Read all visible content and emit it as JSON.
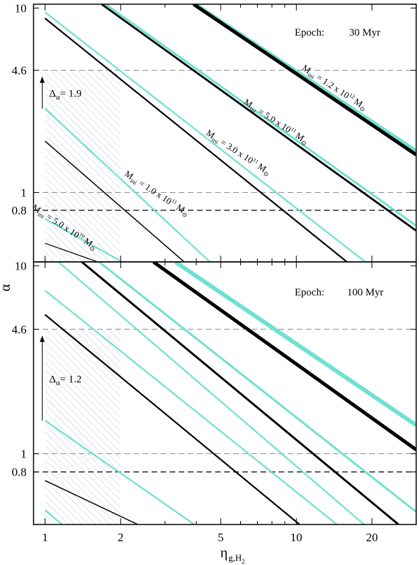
{
  "chart_data": {
    "type": "line",
    "xlabel": "η",
    "xlabel_sub": "g,H",
    "xlabel_sub2": "2",
    "ylabel": "α",
    "x_scale": "log",
    "y_scale": "log",
    "xlim": [
      0.9,
      30
    ],
    "x_ticks": [
      1,
      2,
      5,
      10,
      20
    ],
    "x_tick_labels": [
      "1",
      "2",
      "5",
      "10",
      "20"
    ],
    "x_minor_ticks": [
      0.9,
      3,
      4,
      6,
      7,
      8,
      9,
      30
    ],
    "colors": {
      "black": "#000000",
      "cyan": "#70e0d0",
      "hatch": "#b8c4d8",
      "dash_light": "#8a8a8a"
    },
    "panels": [
      {
        "name": "top",
        "epoch_label": "Epoch:",
        "epoch_value": "30 Myr",
        "ylim": [
          0.42,
          10.5
        ],
        "y_ticks": [
          0.8,
          1,
          4.6,
          10
        ],
        "y_tick_labels": [
          "0.8",
          "1",
          "4.6",
          "10"
        ],
        "hlines": [
          {
            "y": 4.6,
            "style": "light"
          },
          {
            "y": 1,
            "style": "light"
          },
          {
            "y": 0.8,
            "style": "dark"
          }
        ],
        "hatch": {
          "x": [
            1,
            2
          ],
          "y": [
            0.42,
            4.6
          ]
        },
        "delta": {
          "label": "Δ",
          "sub": "α",
          "value": "=  1.9",
          "arrow_from": 2.85,
          "arrow_to": 4.25
        },
        "series": [
          {
            "color": "black",
            "width": 1.2,
            "x": [
              1,
              1.62
            ],
            "y": [
              0.53,
              0.42
            ]
          },
          {
            "color": "cyan",
            "width": 2.2,
            "x": [
              1,
              2.03
            ],
            "y": [
              0.72,
              0.42
            ]
          },
          {
            "color": "black",
            "width": 1.5,
            "x": [
              1,
              3.58
            ],
            "y": [
              1.9,
              0.42
            ]
          },
          {
            "color": "cyan",
            "width": 2.2,
            "x": [
              1,
              4.53
            ],
            "y": [
              2.85,
              0.42
            ]
          },
          {
            "color": "black",
            "width": 2.2,
            "x": [
              1,
              15.9
            ],
            "y": [
              8.8,
              0.42
            ]
          },
          {
            "color": "cyan",
            "width": 2.2,
            "x": [
              1,
              18.8
            ],
            "y": [
              9.5,
              0.42
            ]
          },
          {
            "color": "black",
            "width": 2.8,
            "x": [
              1.68,
              30
            ],
            "y": [
              10.5,
              0.62
            ]
          },
          {
            "color": "cyan",
            "width": 3.0,
            "x": [
              1.74,
              30
            ],
            "y": [
              10.5,
              0.66
            ]
          },
          {
            "color": "cyan",
            "width": 6,
            "x": [
              3.95,
              30
            ],
            "y": [
              10.5,
              1.67
            ]
          },
          {
            "color": "black",
            "width": 5,
            "x": [
              3.9,
              30
            ],
            "y": [
              10.5,
              1.6
            ]
          }
        ],
        "annotations": [
          {
            "text": "M",
            "sub": "ini",
            "rest": " = 5.0 x 10",
            "sup": "10",
            "tail": " M",
            "sun": "⊙",
            "x": 1.18,
            "y": 0.63,
            "angle": 33
          },
          {
            "text": "M",
            "sub": "ini",
            "rest": " = 1.0 x 10",
            "sup": "11",
            "tail": " M",
            "sun": "⊙",
            "x": 2.75,
            "y": 0.96,
            "angle": 33
          },
          {
            "text": "M",
            "sub": "ini",
            "rest": " = 3.0 x 10",
            "sup": "11",
            "tail": " M",
            "sun": "⊙",
            "x": 5.8,
            "y": 1.6,
            "angle": 33
          },
          {
            "text": "M",
            "sub": "ini",
            "rest": " = 5.0 x 10",
            "sup": "11",
            "tail": " M",
            "sun": "⊙",
            "x": 8.2,
            "y": 2.35,
            "angle": 33
          },
          {
            "text": "M",
            "sub": "ini",
            "rest": " = 1.2 x 10",
            "sup": "12",
            "tail": " M",
            "sun": "⊙",
            "x": 14.0,
            "y": 3.6,
            "angle": 33
          }
        ]
      },
      {
        "name": "bottom",
        "epoch_label": "Epoch:",
        "epoch_value": "100 Myr",
        "ylim": [
          0.42,
          10.5
        ],
        "y_ticks": [
          0.8,
          1,
          4.6,
          10
        ],
        "y_tick_labels": [
          "0.8",
          "1",
          "4.6",
          "10"
        ],
        "hlines": [
          {
            "y": 4.6,
            "style": "light"
          },
          {
            "y": 1,
            "style": "light"
          },
          {
            "y": 0.8,
            "style": "dark"
          }
        ],
        "hatch": {
          "x": [
            1,
            2
          ],
          "y": [
            0.42,
            4.6
          ]
        },
        "delta": {
          "label": "Δ",
          "sub": "α",
          "value": "=  1.2",
          "arrow_from": 1.5,
          "arrow_to": 4.25
        },
        "series": [
          {
            "color": "cyan",
            "width": 2.2,
            "x": [
              1,
              1.17
            ],
            "y": [
              0.5,
              0.42
            ]
          },
          {
            "color": "black",
            "width": 1.5,
            "x": [
              1,
              2.34
            ],
            "y": [
              0.72,
              0.42
            ]
          },
          {
            "color": "cyan",
            "width": 2.2,
            "x": [
              1,
              3.93
            ],
            "y": [
              1.5,
              0.42
            ]
          },
          {
            "color": "black",
            "width": 2.2,
            "x": [
              1,
              10.3
            ],
            "y": [
              5.5,
              0.42
            ]
          },
          {
            "color": "cyan",
            "width": 2.2,
            "x": [
              1,
              14.5
            ],
            "y": [
              7.4,
              0.42
            ]
          },
          {
            "color": "cyan",
            "width": 2.2,
            "x": [
              1.13,
              18.6
            ],
            "y": [
              10.5,
              0.42
            ]
          },
          {
            "color": "black",
            "width": 3.0,
            "x": [
              1.4,
              25.5
            ],
            "y": [
              10.5,
              0.42
            ]
          },
          {
            "color": "cyan",
            "width": 3.0,
            "x": [
              1.64,
              30
            ],
            "y": [
              10.5,
              0.49
            ]
          },
          {
            "color": "black",
            "width": 5,
            "x": [
              2.7,
              30
            ],
            "y": [
              10.5,
              1.05
            ]
          },
          {
            "color": "cyan",
            "width": 6,
            "x": [
              3.3,
              30
            ],
            "y": [
              10.5,
              1.42
            ]
          }
        ]
      }
    ]
  }
}
